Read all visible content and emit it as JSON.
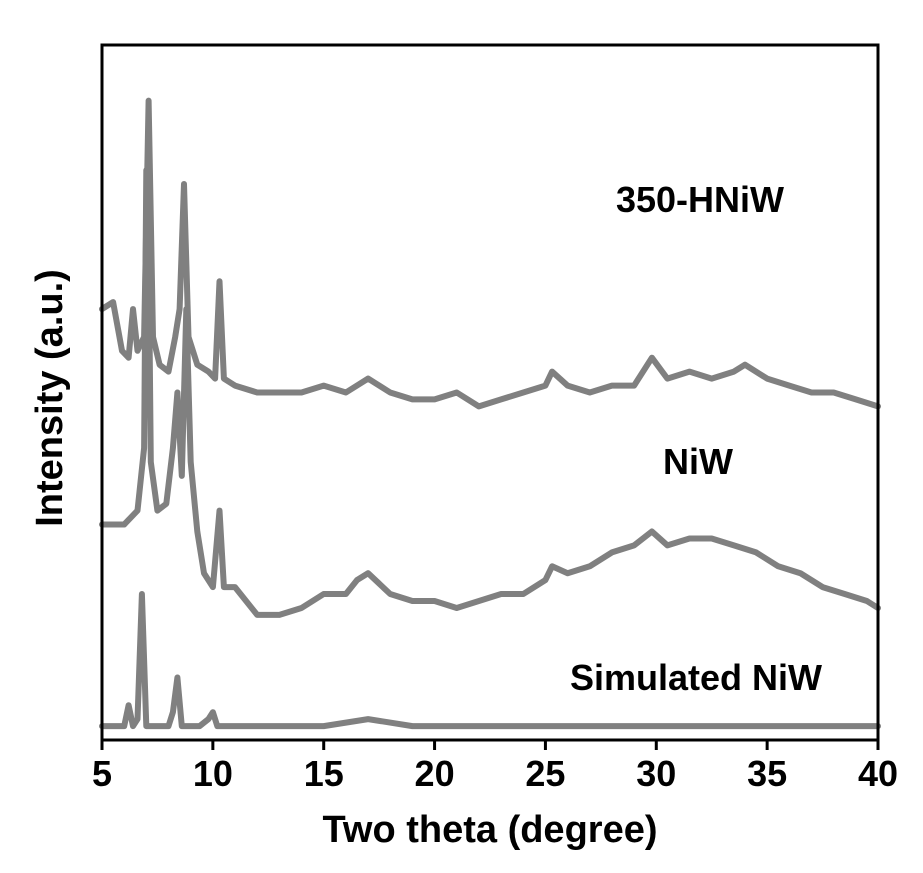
{
  "chart_data": {
    "type": "line",
    "title": "",
    "xlabel": "Two theta (degree)",
    "ylabel": "Intensity (a.u.)",
    "xlim": [
      5,
      40
    ],
    "x_ticks": [
      "5",
      "10",
      "15",
      "20",
      "25",
      "30",
      "35",
      "40"
    ],
    "y_ticks": [],
    "grid": false,
    "legend": "none",
    "line_color": "#808080",
    "series": [
      {
        "name": "350-HNiW",
        "points": [
          [
            5,
            0.62
          ],
          [
            5.5,
            0.63
          ],
          [
            5.9,
            0.56
          ],
          [
            6.2,
            0.55
          ],
          [
            6.4,
            0.62
          ],
          [
            6.6,
            0.56
          ],
          [
            6.9,
            0.58
          ],
          [
            7.1,
            0.92
          ],
          [
            7.3,
            0.58
          ],
          [
            7.6,
            0.54
          ],
          [
            8.0,
            0.53
          ],
          [
            8.3,
            0.58
          ],
          [
            8.5,
            0.62
          ],
          [
            8.7,
            0.8
          ],
          [
            8.9,
            0.58
          ],
          [
            9.3,
            0.54
          ],
          [
            9.8,
            0.53
          ],
          [
            10.1,
            0.52
          ],
          [
            10.3,
            0.66
          ],
          [
            10.5,
            0.52
          ],
          [
            11,
            0.51
          ],
          [
            12,
            0.5
          ],
          [
            13,
            0.5
          ],
          [
            14,
            0.5
          ],
          [
            15,
            0.51
          ],
          [
            16,
            0.5
          ],
          [
            17,
            0.52
          ],
          [
            18,
            0.5
          ],
          [
            19,
            0.49
          ],
          [
            20,
            0.49
          ],
          [
            21,
            0.5
          ],
          [
            22,
            0.48
          ],
          [
            23,
            0.49
          ],
          [
            24,
            0.5
          ],
          [
            25,
            0.51
          ],
          [
            25.3,
            0.53
          ],
          [
            26,
            0.51
          ],
          [
            27,
            0.5
          ],
          [
            28,
            0.51
          ],
          [
            29,
            0.51
          ],
          [
            29.8,
            0.55
          ],
          [
            30.5,
            0.52
          ],
          [
            31.5,
            0.53
          ],
          [
            32.5,
            0.52
          ],
          [
            33.5,
            0.53
          ],
          [
            34,
            0.54
          ],
          [
            35,
            0.52
          ],
          [
            36,
            0.51
          ],
          [
            37,
            0.5
          ],
          [
            38,
            0.5
          ],
          [
            39,
            0.49
          ],
          [
            40,
            0.48
          ]
        ]
      },
      {
        "name": "NiW",
        "points": [
          [
            5,
            0.31
          ],
          [
            5.5,
            0.31
          ],
          [
            6,
            0.31
          ],
          [
            6.3,
            0.32
          ],
          [
            6.6,
            0.33
          ],
          [
            6.9,
            0.42
          ],
          [
            7.0,
            0.82
          ],
          [
            7.1,
            0.72
          ],
          [
            7.2,
            0.4
          ],
          [
            7.5,
            0.33
          ],
          [
            7.9,
            0.34
          ],
          [
            8.2,
            0.42
          ],
          [
            8.4,
            0.5
          ],
          [
            8.6,
            0.38
          ],
          [
            8.8,
            0.62
          ],
          [
            9.0,
            0.4
          ],
          [
            9.3,
            0.3
          ],
          [
            9.6,
            0.24
          ],
          [
            10.0,
            0.22
          ],
          [
            10.3,
            0.33
          ],
          [
            10.5,
            0.22
          ],
          [
            11,
            0.22
          ],
          [
            12,
            0.18
          ],
          [
            13,
            0.18
          ],
          [
            14,
            0.19
          ],
          [
            15,
            0.21
          ],
          [
            16,
            0.21
          ],
          [
            16.5,
            0.23
          ],
          [
            17,
            0.24
          ],
          [
            18,
            0.21
          ],
          [
            19,
            0.2
          ],
          [
            20,
            0.2
          ],
          [
            21,
            0.19
          ],
          [
            22,
            0.2
          ],
          [
            23,
            0.21
          ],
          [
            24,
            0.21
          ],
          [
            25,
            0.23
          ],
          [
            25.3,
            0.25
          ],
          [
            26,
            0.24
          ],
          [
            27,
            0.25
          ],
          [
            28,
            0.27
          ],
          [
            29,
            0.28
          ],
          [
            29.8,
            0.3
          ],
          [
            30.5,
            0.28
          ],
          [
            31.5,
            0.29
          ],
          [
            32.5,
            0.29
          ],
          [
            33.5,
            0.28
          ],
          [
            34.5,
            0.27
          ],
          [
            35.5,
            0.25
          ],
          [
            36.5,
            0.24
          ],
          [
            37.5,
            0.22
          ],
          [
            38.5,
            0.21
          ],
          [
            39.5,
            0.2
          ],
          [
            40,
            0.19
          ]
        ]
      },
      {
        "name": "Simulated NiW",
        "points": [
          [
            5,
            0.02
          ],
          [
            6,
            0.02
          ],
          [
            6.2,
            0.05
          ],
          [
            6.4,
            0.02
          ],
          [
            6.6,
            0.03
          ],
          [
            6.8,
            0.21
          ],
          [
            7.0,
            0.02
          ],
          [
            7.5,
            0.02
          ],
          [
            8.0,
            0.02
          ],
          [
            8.2,
            0.04
          ],
          [
            8.4,
            0.09
          ],
          [
            8.6,
            0.02
          ],
          [
            9.0,
            0.02
          ],
          [
            9.4,
            0.02
          ],
          [
            9.8,
            0.03
          ],
          [
            10.0,
            0.04
          ],
          [
            10.2,
            0.02
          ],
          [
            11,
            0.02
          ],
          [
            13,
            0.02
          ],
          [
            15,
            0.02
          ],
          [
            17,
            0.03
          ],
          [
            19,
            0.02
          ],
          [
            21,
            0.02
          ],
          [
            23,
            0.02
          ],
          [
            25,
            0.02
          ],
          [
            27,
            0.02
          ],
          [
            29,
            0.02
          ],
          [
            30,
            0.02
          ],
          [
            32,
            0.02
          ],
          [
            34,
            0.02
          ],
          [
            36,
            0.02
          ],
          [
            38,
            0.02
          ],
          [
            40,
            0.02
          ]
        ]
      }
    ]
  }
}
